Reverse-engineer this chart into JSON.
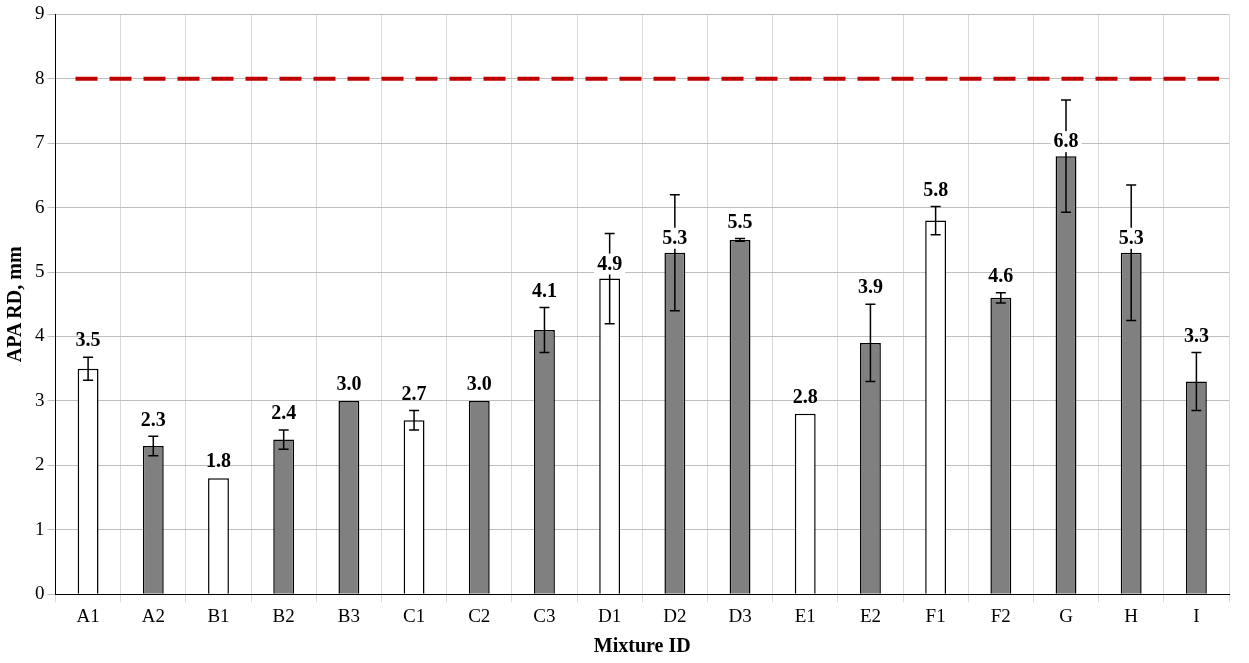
{
  "chart_data": {
    "type": "bar",
    "xlabel": "Mixture ID",
    "ylabel": "APA RD, mm",
    "categories": [
      "A1",
      "A2",
      "B1",
      "B2",
      "B3",
      "C1",
      "C2",
      "C3",
      "D1",
      "D2",
      "D3",
      "E1",
      "E2",
      "F1",
      "F2",
      "G",
      "H",
      "I"
    ],
    "values": [
      3.5,
      2.3,
      1.8,
      2.4,
      3.0,
      2.7,
      3.0,
      4.1,
      4.9,
      5.3,
      5.5,
      2.8,
      3.9,
      5.8,
      4.6,
      6.8,
      5.3,
      3.3
    ],
    "colors": [
      "#ffffff",
      "#808080",
      "#ffffff",
      "#808080",
      "#808080",
      "#ffffff",
      "#808080",
      "#808080",
      "#ffffff",
      "#808080",
      "#808080",
      "#ffffff",
      "#808080",
      "#ffffff",
      "#808080",
      "#808080",
      "#808080",
      "#808080"
    ],
    "value_labels": [
      "3.5",
      "2.3",
      "1.8",
      "2.4",
      "3.0",
      "2.7",
      "3.0",
      "4.1",
      "4.9",
      "5.3",
      "5.5",
      "2.8",
      "3.9",
      "5.8",
      "4.6",
      "6.8",
      "5.3",
      "3.3"
    ],
    "errors": [
      0.18,
      0.15,
      null,
      0.15,
      null,
      0.15,
      null,
      0.35,
      0.7,
      0.9,
      0.02,
      null,
      0.6,
      0.22,
      0.08,
      0.87,
      1.05,
      0.45
    ],
    "ylim": [
      0,
      9
    ],
    "yticks": [
      0,
      1,
      2,
      3,
      4,
      5,
      6,
      7,
      8,
      9
    ],
    "grid": true,
    "ref_lines": [
      {
        "axis": "y",
        "value": 8,
        "color": "#c00000",
        "line_style": "dashed"
      }
    ]
  }
}
